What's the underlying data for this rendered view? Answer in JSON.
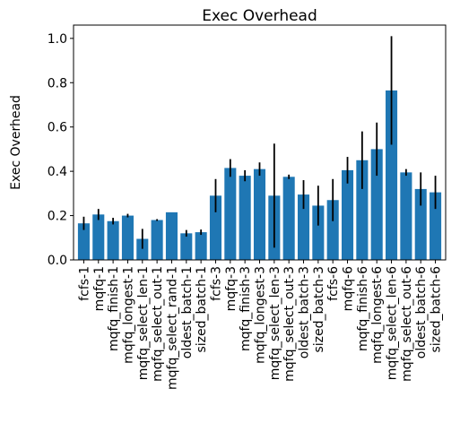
{
  "chart_data": {
    "type": "bar",
    "title": "Exec Overhead",
    "xlabel": "",
    "ylabel": "Exec Overhead",
    "ylim": [
      0,
      1.06
    ],
    "yticks": [
      "0.0",
      "0.2",
      "0.4",
      "0.6",
      "0.8",
      "1.0"
    ],
    "grid": false,
    "bar_color": "#1f77b4",
    "error_color": "#000000",
    "categories": [
      "fcfs-1",
      "mqfq-1",
      "mqfq_finish-1",
      "mqfq_longest-1",
      "mqfq_select_len-1",
      "mqfq_select_out-1",
      "mqfq_select_rand-1",
      "oldest_batch-1",
      "sized_batch-1",
      "fcfs-3",
      "mqfq-3",
      "mqfq_finish-3",
      "mqfq_longest-3",
      "mqfq_select_len-3",
      "mqfq_select_out-3",
      "oldest_batch-3",
      "sized_batch-3",
      "fcfs-6",
      "mqfq-6",
      "mqfq_finish-6",
      "mqfq_longest-6",
      "mqfq_select_len-6",
      "mqfq_select_out-6",
      "oldest_batch-6",
      "sized_batch-6"
    ],
    "values": [
      0.165,
      0.205,
      0.175,
      0.2,
      0.095,
      0.18,
      0.215,
      0.12,
      0.125,
      0.29,
      0.415,
      0.38,
      0.41,
      0.29,
      0.375,
      0.295,
      0.245,
      0.27,
      0.405,
      0.45,
      0.5,
      0.765,
      0.395,
      0.32,
      0.305
    ],
    "errors": [
      0.03,
      0.025,
      0.015,
      0.008,
      0.045,
      0.004,
      0.0,
      0.015,
      0.012,
      0.075,
      0.04,
      0.025,
      0.03,
      0.235,
      0.01,
      0.065,
      0.09,
      0.095,
      0.06,
      0.13,
      0.12,
      0.245,
      0.015,
      0.075,
      0.075
    ]
  }
}
